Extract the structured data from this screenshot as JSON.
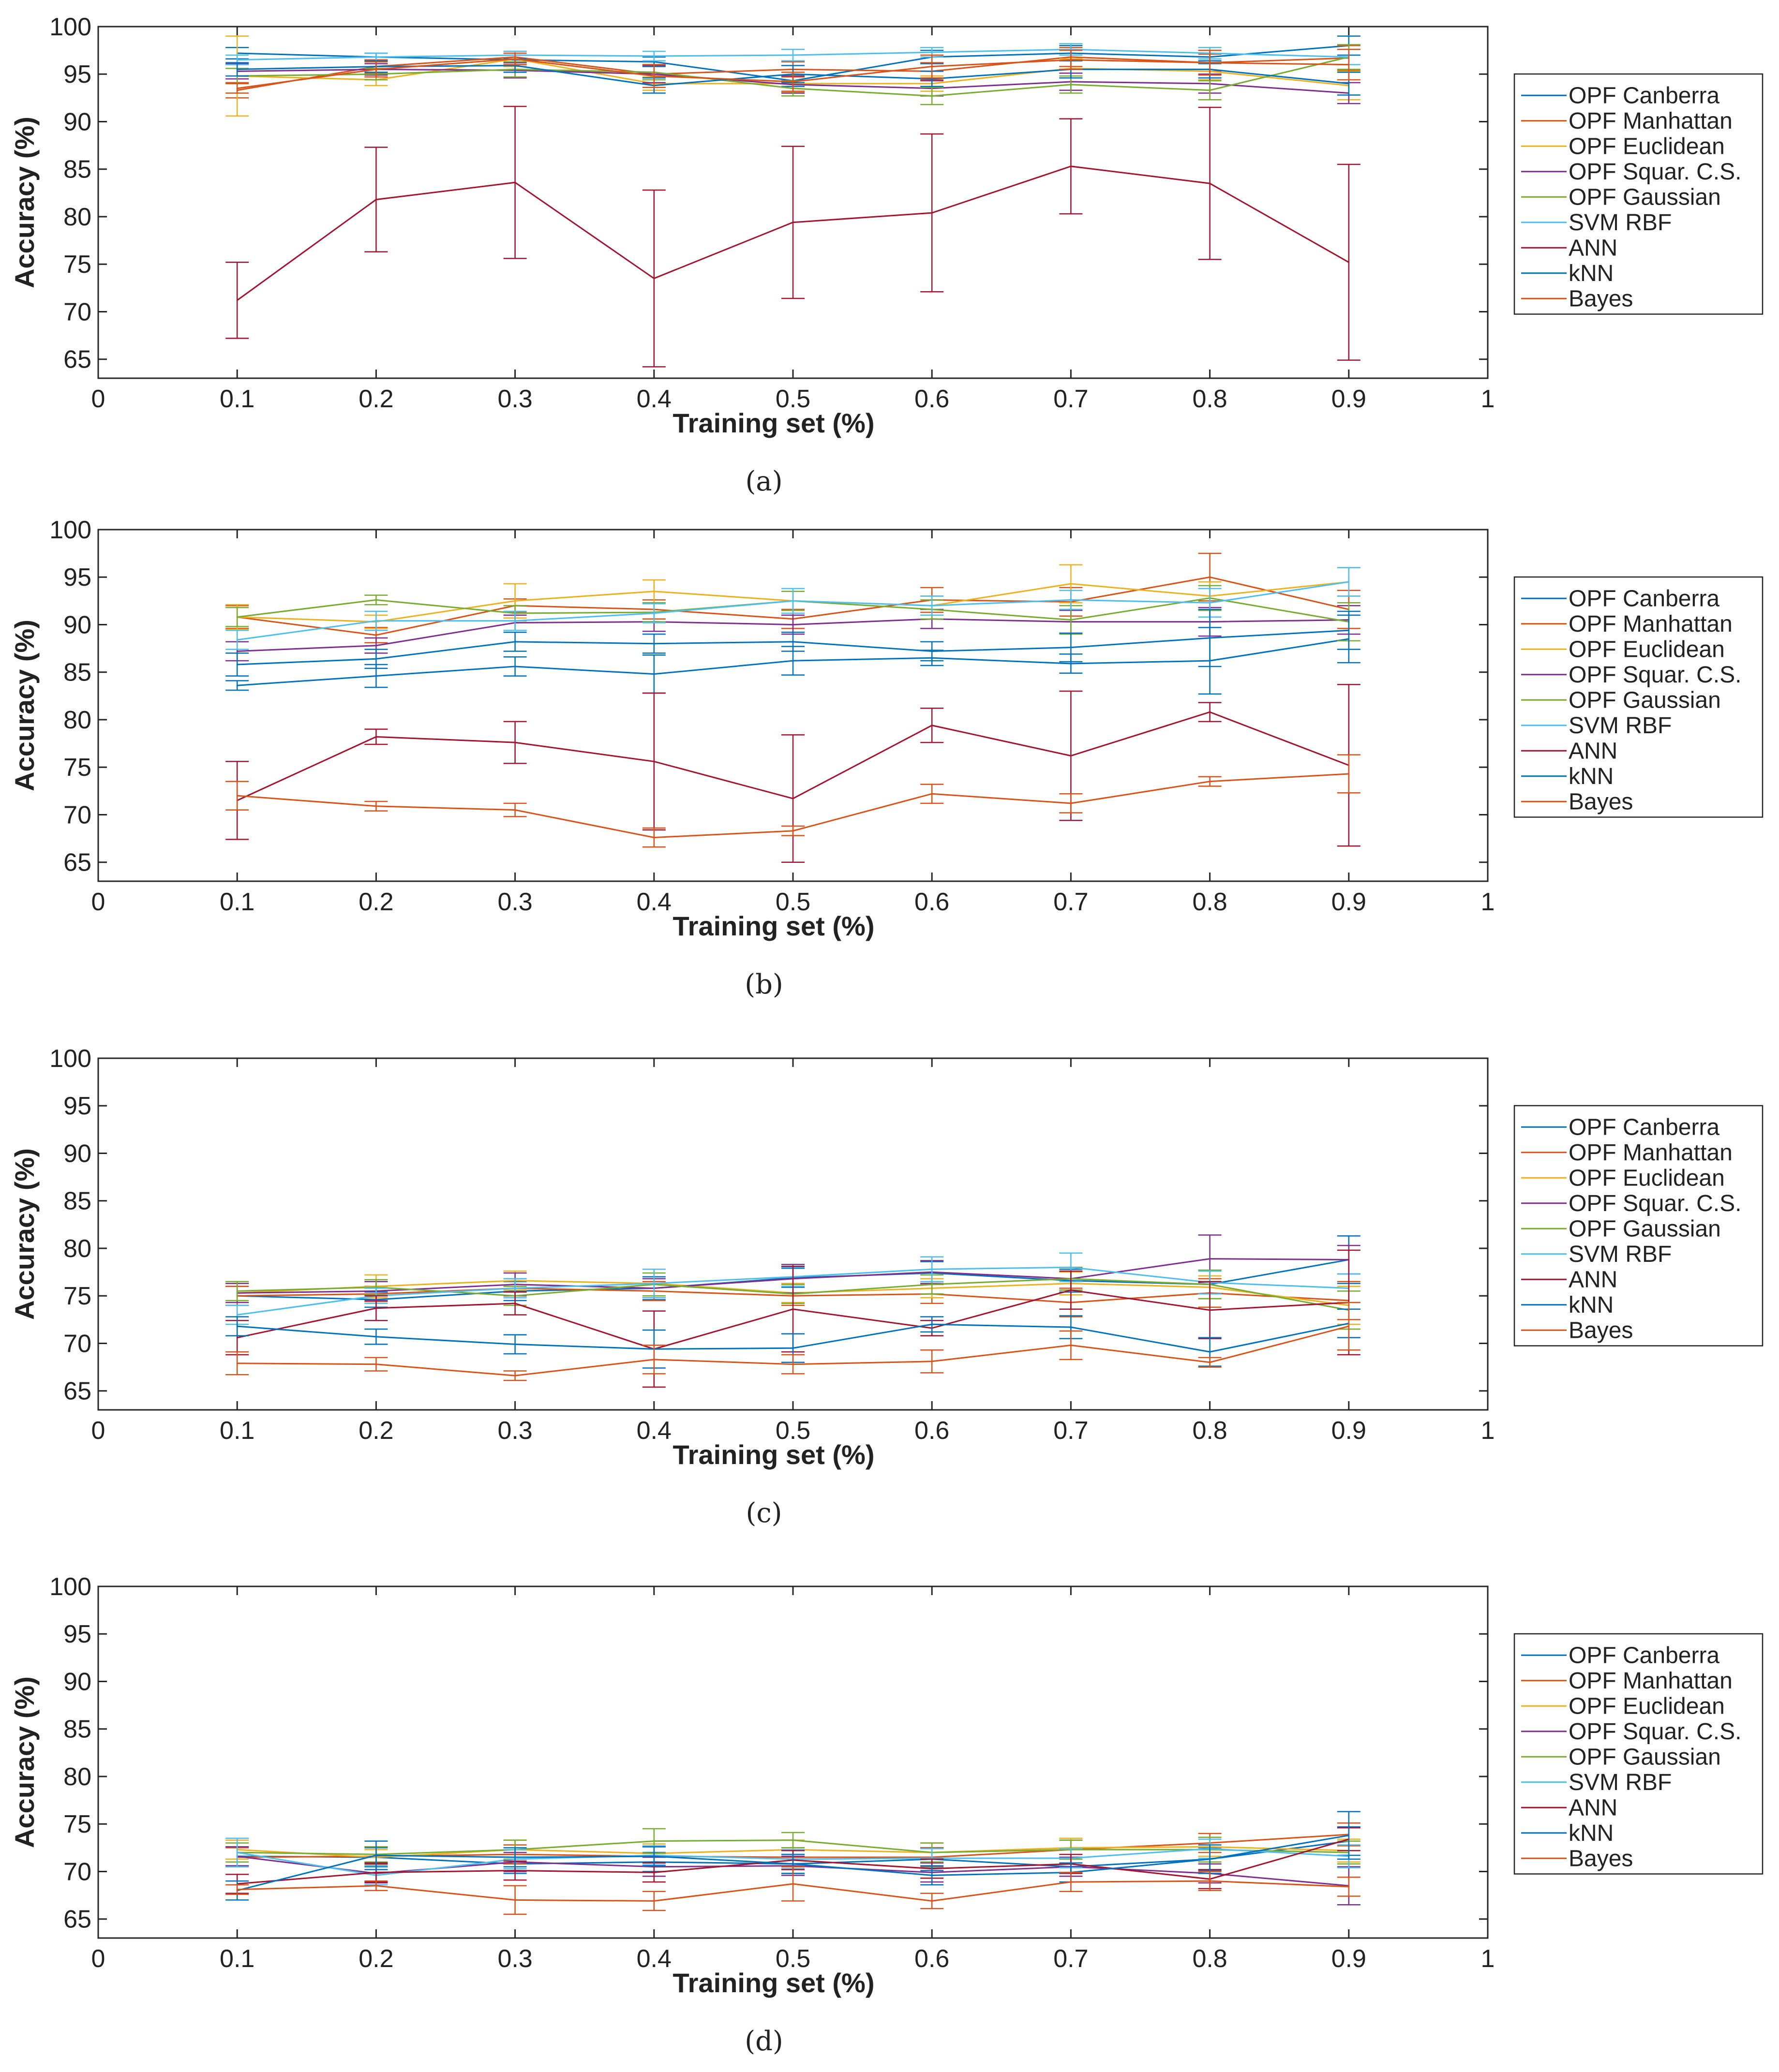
{
  "colors": {
    "OPF Canberra": "#0072bd",
    "OPF Manhattan": "#d95319",
    "OPF Euclidean": "#edb120",
    "OPF Squar. C.S.": "#7e2f8e",
    "OPF Gaussian": "#77ac30",
    "SVM RBF": "#4dbeee",
    "ANN": "#a2142f",
    "kNN": "#0072bd",
    "Bayes": "#d95319"
  },
  "chart_data": [
    {
      "type": "line",
      "caption": "(a)",
      "xlabel": "Training set (%)",
      "ylabel": "Accuracy (%)",
      "xlim": [
        0,
        1
      ],
      "ylim": [
        63,
        100
      ],
      "xticks": [
        "0",
        "0.1",
        "0.2",
        "0.3",
        "0.4",
        "0.5",
        "0.6",
        "0.7",
        "0.8",
        "0.9",
        "1"
      ],
      "yticks": [
        "65",
        "70",
        "75",
        "80",
        "85",
        "90",
        "95",
        "100"
      ],
      "legend": "right",
      "x": [
        0.1,
        0.2,
        0.3,
        0.4,
        0.5,
        0.6,
        0.7,
        0.8,
        0.9
      ],
      "series": [
        {
          "name": "OPF Canberra",
          "values": [
            97.2,
            96.8,
            96.5,
            96.3,
            94.3,
            96.8,
            97.2,
            96.8,
            98.0
          ],
          "errors": [
            0.6,
            0.4,
            0.5,
            0.5,
            0.6,
            0.7,
            0.8,
            0.7,
            1.0
          ]
        },
        {
          "name": "OPF Manhattan",
          "values": [
            93.3,
            95.8,
            96.8,
            95.0,
            95.5,
            95.3,
            96.8,
            96.2,
            96.7
          ],
          "errors": [
            0.8,
            0.7,
            0.6,
            1.0,
            0.8,
            0.9,
            1.0,
            0.9,
            1.3
          ]
        },
        {
          "name": "OPF Euclidean",
          "values": [
            94.8,
            94.4,
            96.6,
            94.0,
            94.0,
            94.0,
            95.6,
            95.3,
            93.8
          ],
          "errors": [
            4.2,
            0.6,
            0.8,
            0.7,
            0.9,
            0.8,
            1.0,
            0.9,
            1.5
          ]
        },
        {
          "name": "OPF Squar. C.S.",
          "values": [
            95.3,
            95.5,
            95.4,
            95.0,
            93.9,
            93.5,
            94.2,
            94.0,
            93.0
          ],
          "errors": [
            0.8,
            0.6,
            0.8,
            0.9,
            0.9,
            0.8,
            0.9,
            1.0,
            1.1
          ]
        },
        {
          "name": "OPF Gaussian",
          "values": [
            94.8,
            95.0,
            95.5,
            95.2,
            93.5,
            92.7,
            93.9,
            93.3,
            96.8
          ],
          "errors": [
            0.8,
            0.6,
            0.8,
            0.8,
            0.8,
            0.9,
            0.9,
            1.0,
            1.3
          ]
        },
        {
          "name": "SVM RBF",
          "values": [
            96.5,
            96.8,
            97.0,
            96.9,
            97.0,
            97.3,
            97.6,
            97.2,
            96.8
          ],
          "errors": [
            0.5,
            0.4,
            0.4,
            0.5,
            0.6,
            0.5,
            0.6,
            0.6,
            0.8
          ]
        },
        {
          "name": "ANN",
          "values": [
            71.2,
            81.8,
            83.6,
            73.5,
            79.4,
            80.4,
            85.3,
            83.5,
            75.2
          ],
          "errors": [
            4.0,
            5.5,
            8.0,
            9.3,
            8.0,
            8.3,
            5.0,
            8.0,
            10.3
          ]
        },
        {
          "name": "kNN",
          "values": [
            95.5,
            95.8,
            95.9,
            93.8,
            95.0,
            94.5,
            95.5,
            95.5,
            94.0
          ],
          "errors": [
            0.7,
            0.6,
            0.7,
            0.8,
            0.9,
            0.8,
            0.9,
            0.9,
            1.2
          ]
        },
        {
          "name": "Bayes",
          "values": [
            93.5,
            95.5,
            96.6,
            94.8,
            94.2,
            95.8,
            96.5,
            96.2,
            96.0
          ],
          "errors": [
            0.5,
            0.8,
            0.6,
            1.2,
            1.0,
            1.2,
            1.0,
            1.3,
            1.6
          ]
        }
      ]
    },
    {
      "type": "line",
      "caption": "(b)",
      "xlabel": "Training set (%)",
      "ylabel": "Accuracy (%)",
      "xlim": [
        0,
        1
      ],
      "ylim": [
        63,
        100
      ],
      "xticks": [
        "0",
        "0.1",
        "0.2",
        "0.3",
        "0.4",
        "0.5",
        "0.6",
        "0.7",
        "0.8",
        "0.9",
        "1"
      ],
      "yticks": [
        "65",
        "70",
        "75",
        "80",
        "85",
        "90",
        "95",
        "100"
      ],
      "legend": "right",
      "x": [
        0.1,
        0.2,
        0.3,
        0.4,
        0.5,
        0.6,
        0.7,
        0.8,
        0.9
      ],
      "series": [
        {
          "name": "OPF Canberra",
          "values": [
            83.6,
            84.6,
            85.6,
            84.8,
            86.2,
            86.5,
            85.9,
            86.2,
            88.5
          ],
          "errors": [
            0.5,
            1.2,
            1.0,
            2.0,
            1.5,
            0.8,
            1.0,
            3.5,
            2.5
          ]
        },
        {
          "name": "OPF Manhattan",
          "values": [
            90.8,
            88.9,
            92.0,
            91.6,
            90.6,
            92.6,
            92.4,
            95.0,
            91.6
          ],
          "errors": [
            1.2,
            0.8,
            0.7,
            1.0,
            1.0,
            1.3,
            1.5,
            2.5,
            2.0
          ]
        },
        {
          "name": "OPF Euclidean",
          "values": [
            90.8,
            90.3,
            92.5,
            93.5,
            92.5,
            92.0,
            94.3,
            93.0,
            94.5
          ],
          "errors": [
            1.3,
            0.7,
            1.8,
            1.2,
            1.0,
            1.0,
            2.0,
            1.5,
            1.5
          ]
        },
        {
          "name": "OPF Squar. C.S.",
          "values": [
            87.2,
            87.8,
            90.2,
            90.3,
            90.0,
            90.6,
            90.3,
            90.3,
            90.5
          ],
          "errors": [
            1.0,
            0.8,
            0.8,
            1.0,
            1.0,
            1.0,
            1.2,
            1.5,
            1.5
          ]
        },
        {
          "name": "OPF Gaussian",
          "values": [
            90.8,
            92.6,
            91.2,
            91.3,
            92.5,
            91.6,
            90.5,
            92.8,
            90.3
          ],
          "errors": [
            1.0,
            0.5,
            0.8,
            1.0,
            1.0,
            1.0,
            1.5,
            1.3,
            2.0
          ]
        },
        {
          "name": "SVM RBF",
          "values": [
            88.4,
            90.4,
            90.4,
            91.2,
            92.5,
            92.0,
            92.6,
            92.3,
            94.5
          ],
          "errors": [
            1.0,
            1.0,
            1.0,
            1.0,
            1.3,
            1.0,
            1.0,
            1.5,
            1.5
          ]
        },
        {
          "name": "ANN",
          "values": [
            71.5,
            78.2,
            77.6,
            75.6,
            71.7,
            79.4,
            76.2,
            80.8,
            75.2
          ],
          "errors": [
            4.1,
            0.8,
            2.2,
            7.2,
            6.7,
            1.8,
            6.8,
            1.0,
            8.5
          ]
        },
        {
          "name": "kNN",
          "values": [
            85.8,
            86.4,
            88.2,
            88.0,
            88.2,
            87.2,
            87.6,
            88.6,
            89.4
          ],
          "errors": [
            1.2,
            1.0,
            1.0,
            1.0,
            1.0,
            1.0,
            1.5,
            3.0,
            2.0
          ]
        },
        {
          "name": "Bayes",
          "values": [
            72.0,
            70.9,
            70.5,
            67.6,
            68.3,
            72.2,
            71.2,
            73.5,
            74.3
          ],
          "errors": [
            1.5,
            0.5,
            0.7,
            1.0,
            0.5,
            1.0,
            1.0,
            0.5,
            2.0
          ]
        }
      ]
    },
    {
      "type": "line",
      "caption": "(c)",
      "xlabel": "Training set (%)",
      "ylabel": "Accuracy (%)",
      "xlim": [
        0,
        1
      ],
      "ylim": [
        63,
        100
      ],
      "xticks": [
        "0",
        "0.1",
        "0.2",
        "0.3",
        "0.4",
        "0.5",
        "0.6",
        "0.7",
        "0.8",
        "0.9",
        "1"
      ],
      "yticks": [
        "65",
        "70",
        "75",
        "80",
        "85",
        "90",
        "95",
        "100"
      ],
      "legend": "right",
      "x": [
        0.1,
        0.2,
        0.3,
        0.4,
        0.5,
        0.6,
        0.7,
        0.8,
        0.9
      ],
      "series": [
        {
          "name": "OPF Canberra",
          "values": [
            75.0,
            74.6,
            75.5,
            75.8,
            76.9,
            77.4,
            76.6,
            76.2,
            78.8
          ],
          "errors": [
            1.0,
            0.8,
            1.0,
            1.2,
            1.0,
            1.2,
            1.2,
            1.5,
            2.5
          ]
        },
        {
          "name": "OPF Manhattan",
          "values": [
            75.0,
            75.2,
            75.8,
            75.5,
            75.0,
            75.2,
            74.3,
            75.3,
            74.5
          ],
          "errors": [
            1.0,
            0.8,
            1.0,
            1.0,
            1.0,
            1.0,
            1.5,
            1.5,
            2.0
          ]
        },
        {
          "name": "OPF Euclidean",
          "values": [
            75.3,
            76.0,
            76.6,
            76.3,
            75.3,
            75.8,
            76.3,
            75.9,
            74.0
          ],
          "errors": [
            1.0,
            1.2,
            1.0,
            1.5,
            1.0,
            1.0,
            1.2,
            1.2,
            2.0
          ]
        },
        {
          "name": "OPF Squar. C.S.",
          "values": [
            75.3,
            75.5,
            76.2,
            75.8,
            76.8,
            77.5,
            76.8,
            78.9,
            78.8
          ],
          "errors": [
            1.0,
            1.0,
            1.2,
            1.0,
            1.5,
            1.2,
            1.2,
            2.5,
            1.5
          ]
        },
        {
          "name": "OPF Gaussian",
          "values": [
            75.5,
            75.9,
            75.0,
            76.2,
            75.2,
            76.2,
            76.8,
            76.2,
            73.5
          ],
          "errors": [
            1.0,
            0.8,
            1.0,
            1.2,
            1.0,
            1.0,
            1.2,
            1.5,
            2.0
          ]
        },
        {
          "name": "SVM RBF",
          "values": [
            73.0,
            75.0,
            75.8,
            76.3,
            77.0,
            77.8,
            78.0,
            76.4,
            75.8
          ],
          "errors": [
            1.0,
            0.8,
            1.0,
            1.5,
            1.0,
            1.3,
            1.5,
            1.2,
            1.5
          ]
        },
        {
          "name": "ANN",
          "values": [
            70.6,
            73.7,
            74.2,
            69.4,
            73.6,
            71.6,
            75.6,
            73.5,
            74.3
          ],
          "errors": [
            1.8,
            1.3,
            1.2,
            4.0,
            4.5,
            0.8,
            2.0,
            3.0,
            5.5
          ]
        },
        {
          "name": "kNN",
          "values": [
            71.8,
            70.7,
            69.9,
            69.4,
            69.5,
            72.0,
            71.7,
            69.1,
            72.1
          ],
          "errors": [
            1.0,
            0.8,
            1.0,
            2.0,
            1.5,
            0.8,
            1.2,
            1.5,
            1.5
          ]
        },
        {
          "name": "Bayes",
          "values": [
            67.9,
            67.8,
            66.6,
            68.3,
            67.8,
            68.1,
            69.8,
            68.0,
            71.8
          ],
          "errors": [
            1.2,
            0.7,
            0.5,
            1.5,
            1.0,
            1.2,
            1.5,
            0.5,
            2.5
          ]
        }
      ]
    },
    {
      "type": "line",
      "caption": "(d)",
      "xlabel": "Training set (%)",
      "ylabel": "Accuracy (%)",
      "xlim": [
        0,
        1
      ],
      "ylim": [
        63,
        100
      ],
      "xticks": [
        "0",
        "0.1",
        "0.2",
        "0.3",
        "0.4",
        "0.5",
        "0.6",
        "0.7",
        "0.8",
        "0.9",
        "1"
      ],
      "yticks": [
        "65",
        "70",
        "75",
        "80",
        "85",
        "90",
        "95",
        "100"
      ],
      "legend": "right",
      "x": [
        0.1,
        0.2,
        0.3,
        0.4,
        0.5,
        0.6,
        0.7,
        0.8,
        0.9
      ],
      "series": [
        {
          "name": "OPF Canberra",
          "values": [
            71.6,
            71.5,
            70.8,
            71.0,
            70.8,
            71.3,
            70.5,
            71.3,
            73.2
          ],
          "errors": [
            1.0,
            1.0,
            1.0,
            1.0,
            1.0,
            1.2,
            1.0,
            1.2,
            1.5
          ]
        },
        {
          "name": "OPF Manhattan",
          "values": [
            71.5,
            71.6,
            71.8,
            71.6,
            71.5,
            71.5,
            72.3,
            73.0,
            73.9
          ],
          "errors": [
            1.0,
            1.0,
            1.0,
            1.0,
            1.0,
            1.0,
            1.0,
            1.0,
            1.2
          ]
        },
        {
          "name": "OPF Euclidean",
          "values": [
            72.3,
            71.5,
            72.3,
            71.9,
            72.3,
            72.0,
            72.5,
            72.6,
            72.2
          ],
          "errors": [
            1.0,
            0.8,
            1.0,
            1.0,
            1.0,
            1.0,
            1.0,
            1.0,
            1.2
          ]
        },
        {
          "name": "OPF Squar. C.S.",
          "values": [
            71.6,
            69.8,
            71.0,
            70.5,
            70.6,
            69.9,
            70.5,
            69.8,
            68.5
          ],
          "errors": [
            1.0,
            1.0,
            1.0,
            1.0,
            1.0,
            1.0,
            1.0,
            1.0,
            2.0
          ]
        },
        {
          "name": "OPF Gaussian",
          "values": [
            72.0,
            71.8,
            72.3,
            73.2,
            73.3,
            72.0,
            72.3,
            72.3,
            72.0
          ],
          "errors": [
            1.0,
            0.8,
            1.0,
            1.3,
            0.8,
            1.0,
            1.0,
            1.3,
            1.2
          ]
        },
        {
          "name": "SVM RBF",
          "values": [
            72.0,
            69.6,
            71.3,
            71.7,
            71.3,
            71.4,
            71.4,
            72.4,
            71.6
          ],
          "errors": [
            1.5,
            1.0,
            1.0,
            1.0,
            1.0,
            1.0,
            1.0,
            1.0,
            1.2
          ]
        },
        {
          "name": "ANN",
          "values": [
            68.7,
            69.9,
            70.1,
            69.9,
            71.2,
            70.3,
            70.8,
            69.2,
            73.4
          ],
          "errors": [
            1.0,
            1.0,
            1.0,
            1.0,
            1.0,
            1.0,
            1.0,
            1.0,
            1.2
          ]
        },
        {
          "name": "kNN",
          "values": [
            68.0,
            71.7,
            71.5,
            71.6,
            70.8,
            69.6,
            69.9,
            71.3,
            73.8
          ],
          "errors": [
            1.0,
            1.5,
            1.0,
            1.0,
            1.0,
            1.0,
            1.0,
            1.5,
            2.5
          ]
        },
        {
          "name": "Bayes",
          "values": [
            68.1,
            68.5,
            67.0,
            66.9,
            68.7,
            66.9,
            68.9,
            69.0,
            68.4
          ],
          "errors": [
            0.5,
            0.5,
            1.5,
            1.0,
            1.8,
            0.8,
            1.0,
            1.0,
            1.0
          ]
        }
      ]
    }
  ]
}
